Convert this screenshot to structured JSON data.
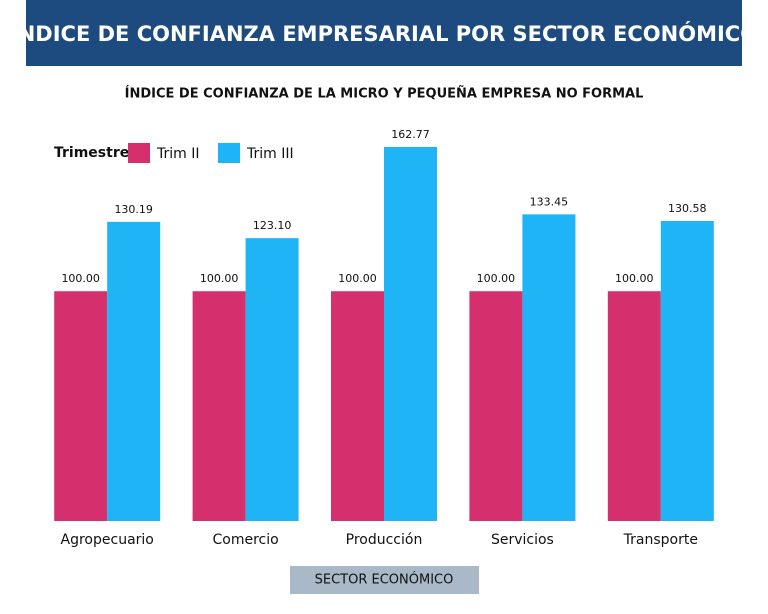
{
  "chart_data": {
    "type": "bar",
    "title": "ÍNDICE DE CONFIANZA EMPRESARIAL POR SECTOR ECONÓMICO",
    "subtitle": "ÍNDICE DE CONFIANZA DE LA MICRO Y PEQUEÑA EMPRESA NO FORMAL",
    "legend_title": "Trimestre",
    "x_label": "SECTOR ECONÓMICO",
    "categories": [
      "Agropecuario",
      "Comercio",
      "Producción",
      "Servicios",
      "Transporte"
    ],
    "series": [
      {
        "name": "Trim II",
        "color": "#d62f6e",
        "values": [
          100,
          100,
          100,
          100,
          100
        ],
        "value_labels": [
          "100.00",
          "100.00",
          "100.00",
          "100.00",
          "100.00"
        ]
      },
      {
        "name": "Trim III",
        "color": "#1fb4f5",
        "values": [
          130.19,
          123.1,
          162.77,
          133.45,
          130.58
        ],
        "value_labels": [
          "130.19",
          "123.10",
          "162.77",
          "133.45",
          "130.58"
        ]
      }
    ]
  }
}
